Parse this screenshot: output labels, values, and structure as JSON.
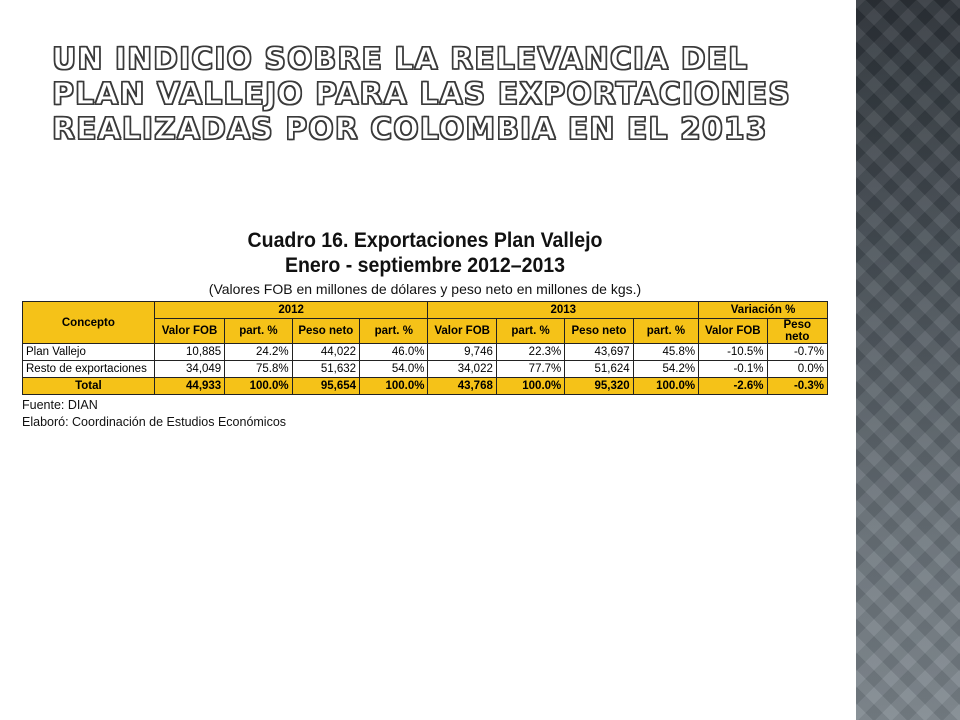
{
  "slide": {
    "title": "Un indicio sobre la relevancia del Plan Vallejo para las exportaciones realizadas por Colombia en el 2013"
  },
  "table": {
    "title_line1": "Cuadro 16. Exportaciones Plan Vallejo",
    "title_line2": "Enero - septiembre 2012–2013",
    "subtitle": "(Valores FOB en millones de dólares y peso neto en millones de kgs.)",
    "concept_header": "Concepto",
    "group_headers": [
      "2012",
      "2013",
      "Variación %"
    ],
    "sub_headers": [
      "Valor FOB",
      "part. %",
      "Peso neto",
      "part. %",
      "Valor FOB",
      "part. %",
      "Peso neto",
      "part. %",
      "Valor FOB",
      "Peso neto"
    ],
    "rows": [
      {
        "label": "Plan Vallejo",
        "cells": [
          "10,885",
          "24.2%",
          "44,022",
          "46.0%",
          "9,746",
          "22.3%",
          "43,697",
          "45.8%",
          "-10.5%",
          "-0.7%"
        ]
      },
      {
        "label": "Resto de exportaciones",
        "cells": [
          "34,049",
          "75.8%",
          "51,632",
          "54.0%",
          "34,022",
          "77.7%",
          "51,624",
          "54.2%",
          "-0.1%",
          "0.0%"
        ]
      }
    ],
    "total": {
      "label": "Total",
      "cells": [
        "44,933",
        "100.0%",
        "95,654",
        "100.0%",
        "43,768",
        "100.0%",
        "95,320",
        "100.0%",
        "-2.6%",
        "-0.3%"
      ]
    }
  },
  "notes": {
    "source": "Fuente: DIAN",
    "author": "Elaboró: Coordinación de Estudios Económicos"
  },
  "colors": {
    "header_fill": "#f5c218",
    "sidebar": "#474f56"
  }
}
